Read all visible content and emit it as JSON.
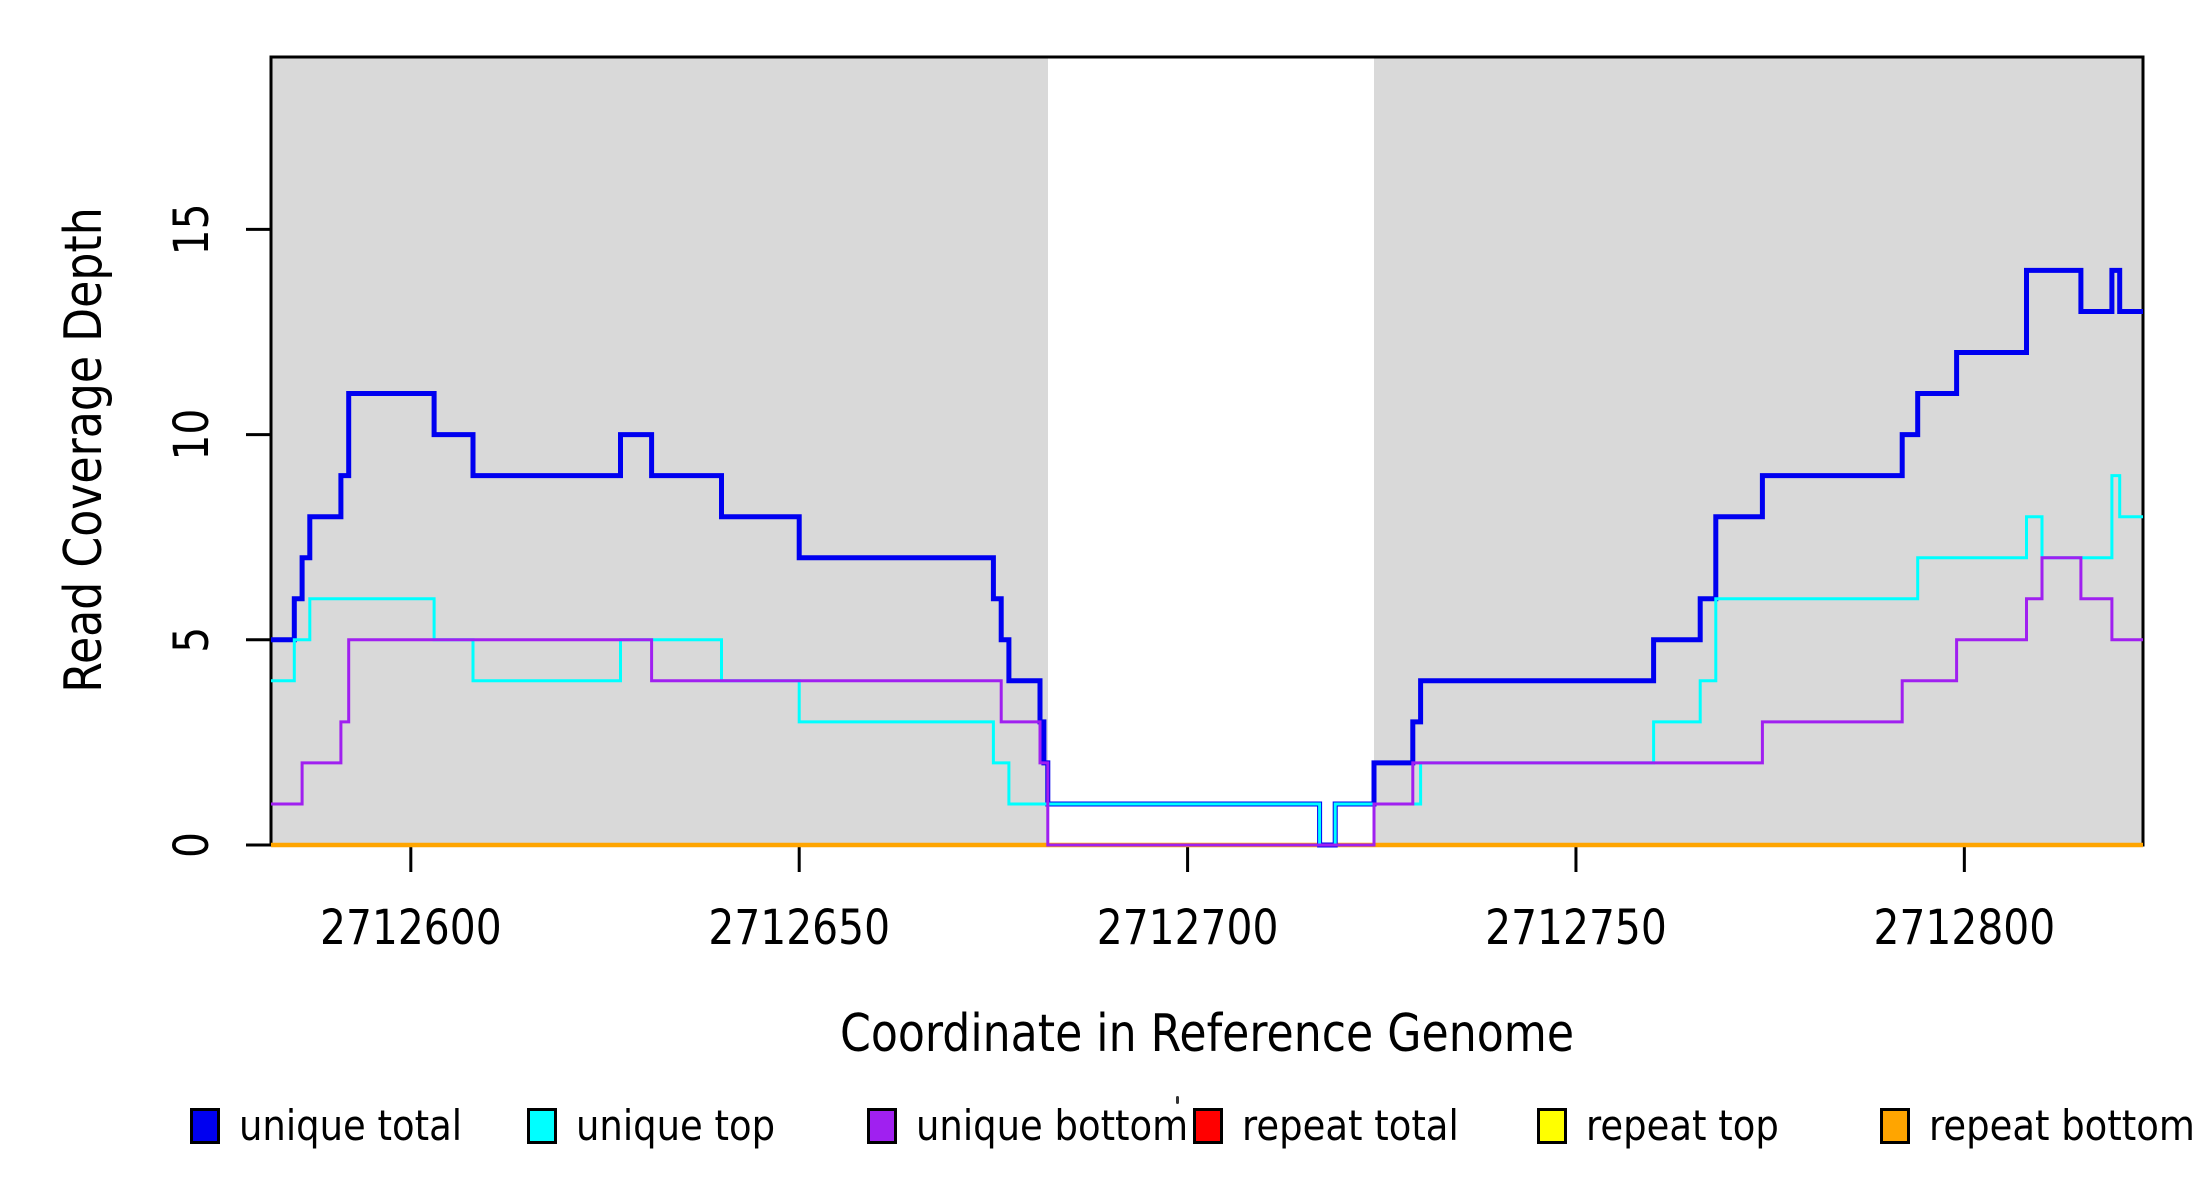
{
  "chart_data": {
    "type": "line",
    "subtype": "step-coverage",
    "title": "",
    "xlabel": "Coordinate in Reference Genome",
    "ylabel": "Read Coverage Depth",
    "xlim": [
      2712582,
      2712823
    ],
    "ylim": [
      0,
      19.2
    ],
    "grid": false,
    "legend_position": "bottom-horizontal",
    "x_ticks": [
      {
        "value": 2712600,
        "label": "2712600"
      },
      {
        "value": 2712650,
        "label": "2712650"
      },
      {
        "value": 2712700,
        "label": "2712700"
      },
      {
        "value": 2712750,
        "label": "2712750"
      },
      {
        "value": 2712800,
        "label": "2712800"
      }
    ],
    "y_ticks": [
      {
        "value": 0,
        "label": "0"
      },
      {
        "value": 5,
        "label": "5"
      },
      {
        "value": 10,
        "label": "10"
      },
      {
        "value": 15,
        "label": "15"
      }
    ],
    "background_regions": [
      {
        "name": "covered-left",
        "x0": 2712582,
        "x1": 2712682,
        "color": "#d9d9d9"
      },
      {
        "name": "gap",
        "x0": 2712682,
        "x1": 2712724,
        "color": "#ffffff"
      },
      {
        "name": "covered-right",
        "x0": 2712724,
        "x1": 2712823,
        "color": "#d9d9d9"
      }
    ],
    "series": [
      {
        "name": "repeat total",
        "color": "#ff0000",
        "width": 3,
        "points": [
          [
            2712582,
            0
          ],
          [
            2712823,
            0
          ]
        ]
      },
      {
        "name": "repeat top",
        "color": "#ffff00",
        "width": 3,
        "points": [
          [
            2712582,
            0
          ],
          [
            2712823,
            0
          ]
        ]
      },
      {
        "name": "repeat bottom",
        "color": "#ffa500",
        "width": 4.5,
        "points": [
          [
            2712582,
            0
          ],
          [
            2712823,
            0
          ]
        ]
      },
      {
        "name": "unique total",
        "color": "#0000f0",
        "width": 5,
        "points": [
          [
            2712582,
            5
          ],
          [
            2712585,
            6
          ],
          [
            2712586,
            7
          ],
          [
            2712587,
            8
          ],
          [
            2712591,
            9
          ],
          [
            2712592,
            11
          ],
          [
            2712603,
            10
          ],
          [
            2712608,
            9
          ],
          [
            2712627,
            10
          ],
          [
            2712631,
            9
          ],
          [
            2712640,
            8
          ],
          [
            2712650,
            7
          ],
          [
            2712675,
            6
          ],
          [
            2712676,
            5
          ],
          [
            2712677,
            4
          ],
          [
            2712681,
            3
          ],
          [
            2712681.5,
            2
          ],
          [
            2712682,
            1
          ],
          [
            2712717,
            0
          ],
          [
            2712719,
            1
          ],
          [
            2712724,
            2
          ],
          [
            2712729,
            3
          ],
          [
            2712730,
            4
          ],
          [
            2712760,
            5
          ],
          [
            2712766,
            6
          ],
          [
            2712768,
            8
          ],
          [
            2712774,
            9
          ],
          [
            2712792,
            10
          ],
          [
            2712794,
            11
          ],
          [
            2712799,
            12
          ],
          [
            2712808,
            14
          ],
          [
            2712815,
            13
          ],
          [
            2712819,
            14
          ],
          [
            2712820,
            13
          ],
          [
            2712823,
            13
          ]
        ]
      },
      {
        "name": "unique top",
        "color": "#00ffff",
        "width": 3,
        "points": [
          [
            2712582,
            4
          ],
          [
            2712585,
            5
          ],
          [
            2712587,
            6
          ],
          [
            2712603,
            5
          ],
          [
            2712608,
            4
          ],
          [
            2712627,
            5
          ],
          [
            2712640,
            4
          ],
          [
            2712650,
            3
          ],
          [
            2712675,
            2
          ],
          [
            2712677,
            1
          ],
          [
            2712717,
            0
          ],
          [
            2712719,
            1
          ],
          [
            2712730,
            2
          ],
          [
            2712760,
            3
          ],
          [
            2712766,
            4
          ],
          [
            2712768,
            6
          ],
          [
            2712794,
            7
          ],
          [
            2712808,
            8
          ],
          [
            2712810,
            7
          ],
          [
            2712819,
            9
          ],
          [
            2712820,
            8
          ],
          [
            2712823,
            8
          ]
        ]
      },
      {
        "name": "unique bottom",
        "color": "#a020f0",
        "width": 3,
        "points": [
          [
            2712582,
            1
          ],
          [
            2712586,
            2
          ],
          [
            2712591,
            3
          ],
          [
            2712592,
            5
          ],
          [
            2712631,
            4
          ],
          [
            2712676,
            3
          ],
          [
            2712681,
            2
          ],
          [
            2712682,
            0
          ],
          [
            2712724,
            1
          ],
          [
            2712729,
            2
          ],
          [
            2712774,
            3
          ],
          [
            2712792,
            4
          ],
          [
            2712799,
            5
          ],
          [
            2712808,
            6
          ],
          [
            2712810,
            7
          ],
          [
            2712815,
            6
          ],
          [
            2712819,
            5
          ],
          [
            2712823,
            5
          ]
        ]
      }
    ]
  },
  "legend": {
    "items": [
      {
        "label": "unique total",
        "color": "#0000f0"
      },
      {
        "label": "unique top",
        "color": "#00ffff"
      },
      {
        "label": "unique bottom",
        "color": "#a020f0"
      },
      {
        "label": "repeat total",
        "color": "#ff0000"
      },
      {
        "label": "repeat top",
        "color": "#ffff00"
      },
      {
        "label": "repeat bottom",
        "color": "#ffa500"
      }
    ]
  }
}
